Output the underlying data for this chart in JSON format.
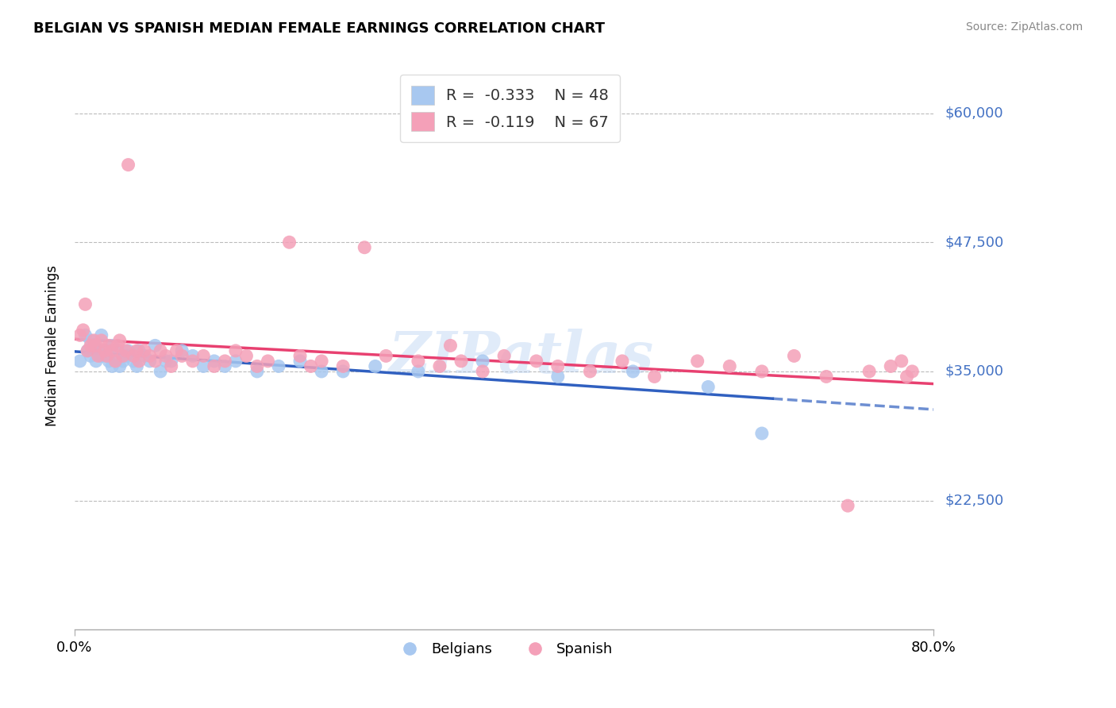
{
  "title": "BELGIAN VS SPANISH MEDIAN FEMALE EARNINGS CORRELATION CHART",
  "source_text": "Source: ZipAtlas.com",
  "ylabel": "Median Female Earnings",
  "xlim": [
    0.0,
    0.8
  ],
  "ylim": [
    10000,
    65000
  ],
  "yticks": [
    22500,
    35000,
    47500,
    60000
  ],
  "ytick_labels": [
    "$22,500",
    "$35,000",
    "$47,500",
    "$60,000"
  ],
  "xtick_labels": [
    "0.0%",
    "80.0%"
  ],
  "belgian_color": "#A8C8F0",
  "spanish_color": "#F4A0B8",
  "belgian_trend_color": "#3060C0",
  "spanish_trend_color": "#E84070",
  "R_belgian": -0.333,
  "N_belgian": 48,
  "R_spanish": -0.119,
  "N_spanish": 67,
  "watermark": "ZIPatlas",
  "title_fontsize": 13,
  "axis_label_color": "#4472C4",
  "grid_color": "#BBBBBB",
  "background_color": "#FFFFFF",
  "belgians_x": [
    0.005,
    0.01,
    0.012,
    0.015,
    0.015,
    0.018,
    0.02,
    0.022,
    0.025,
    0.025,
    0.028,
    0.03,
    0.032,
    0.035,
    0.035,
    0.038,
    0.04,
    0.042,
    0.045,
    0.048,
    0.05,
    0.055,
    0.058,
    0.06,
    0.065,
    0.07,
    0.075,
    0.08,
    0.085,
    0.09,
    0.1,
    0.11,
    0.12,
    0.13,
    0.14,
    0.15,
    0.17,
    0.19,
    0.21,
    0.23,
    0.25,
    0.28,
    0.32,
    0.38,
    0.45,
    0.52,
    0.59,
    0.64
  ],
  "belgians_y": [
    36000,
    38500,
    37000,
    36500,
    38000,
    37500,
    36000,
    37000,
    38500,
    36500,
    37000,
    36500,
    36000,
    37500,
    35500,
    36000,
    37000,
    35500,
    36000,
    36500,
    37000,
    36000,
    35500,
    37000,
    36500,
    36000,
    37500,
    35000,
    36000,
    36000,
    37000,
    36500,
    35500,
    36000,
    35500,
    36000,
    35000,
    35500,
    36000,
    35000,
    35000,
    35500,
    35000,
    36000,
    34500,
    35000,
    33500,
    29000
  ],
  "spanish_x": [
    0.005,
    0.008,
    0.01,
    0.012,
    0.015,
    0.018,
    0.02,
    0.022,
    0.025,
    0.028,
    0.03,
    0.032,
    0.035,
    0.038,
    0.04,
    0.042,
    0.045,
    0.048,
    0.05,
    0.055,
    0.058,
    0.06,
    0.065,
    0.07,
    0.075,
    0.08,
    0.085,
    0.09,
    0.095,
    0.1,
    0.11,
    0.12,
    0.13,
    0.14,
    0.15,
    0.16,
    0.17,
    0.18,
    0.2,
    0.21,
    0.22,
    0.23,
    0.25,
    0.27,
    0.29,
    0.32,
    0.34,
    0.35,
    0.36,
    0.38,
    0.4,
    0.43,
    0.45,
    0.48,
    0.51,
    0.54,
    0.58,
    0.61,
    0.64,
    0.67,
    0.7,
    0.72,
    0.74,
    0.76,
    0.77,
    0.775,
    0.78
  ],
  "spanish_y": [
    38500,
    39000,
    41500,
    37000,
    37500,
    38000,
    37500,
    36500,
    38000,
    37000,
    36500,
    37500,
    37000,
    36000,
    37500,
    38000,
    36500,
    37000,
    55000,
    36500,
    37000,
    36000,
    37000,
    36500,
    36000,
    37000,
    36500,
    35500,
    37000,
    36500,
    36000,
    36500,
    35500,
    36000,
    37000,
    36500,
    35500,
    36000,
    47500,
    36500,
    35500,
    36000,
    35500,
    47000,
    36500,
    36000,
    35500,
    37500,
    36000,
    35000,
    36500,
    36000,
    35500,
    35000,
    36000,
    34500,
    36000,
    35500,
    35000,
    36500,
    34500,
    22000,
    35000,
    35500,
    36000,
    34500,
    35000
  ]
}
